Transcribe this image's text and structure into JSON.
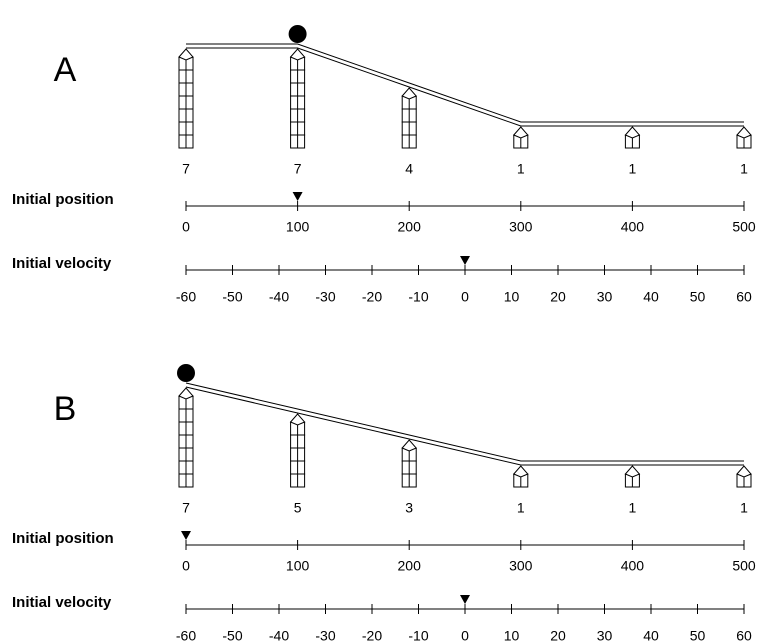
{
  "panels": [
    {
      "label": "A",
      "stacks": [
        7,
        7,
        4,
        1,
        1,
        1
      ],
      "position_axis": {
        "label": "Initial position",
        "ticks": [
          0,
          100,
          200,
          300,
          400,
          500
        ]
      },
      "velocity_axis": {
        "label": "Initial velocity",
        "ticks": [
          -60,
          -50,
          -40,
          -30,
          -20,
          -10,
          0,
          10,
          20,
          30,
          40,
          50,
          60
        ]
      },
      "initial_position": 100,
      "initial_velocity": 0
    },
    {
      "label": "B",
      "stacks": [
        7,
        5,
        3,
        1,
        1,
        1
      ],
      "position_axis": {
        "label": "Initial position",
        "ticks": [
          0,
          100,
          200,
          300,
          400,
          500
        ]
      },
      "velocity_axis": {
        "label": "Initial velocity",
        "ticks": [
          -60,
          -50,
          -40,
          -30,
          -20,
          -10,
          0,
          10,
          20,
          30,
          40,
          50,
          60
        ]
      },
      "initial_position": 0,
      "initial_velocity": 0
    }
  ]
}
